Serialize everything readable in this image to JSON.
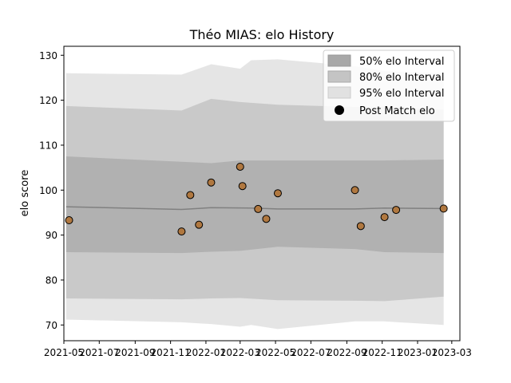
{
  "chart_data": {
    "type": "scatter",
    "title": "Théo MIAS: elo History",
    "xlabel": "",
    "ylabel": "elo score",
    "ylim": [
      66.5,
      132
    ],
    "xlim": [
      "2021-05-01",
      "2023-03-15"
    ],
    "y_ticks": [
      70,
      80,
      90,
      100,
      110,
      120,
      130
    ],
    "x_ticks": [
      {
        "date": "2021-05-01",
        "label": "2021-05"
      },
      {
        "date": "2021-07-01",
        "label": "2021-07"
      },
      {
        "date": "2021-09-01",
        "label": "2021-09"
      },
      {
        "date": "2021-11-01",
        "label": "2021-11"
      },
      {
        "date": "2022-01-01",
        "label": "2022-01"
      },
      {
        "date": "2022-03-01",
        "label": "2022-03"
      },
      {
        "date": "2022-05-01",
        "label": "2022-05"
      },
      {
        "date": "2022-07-01",
        "label": "2022-07"
      },
      {
        "date": "2022-09-01",
        "label": "2022-09"
      },
      {
        "date": "2022-11-01",
        "label": "2022-11"
      },
      {
        "date": "2023-01-01",
        "label": "2023-01"
      },
      {
        "date": "2023-03-01",
        "label": "2023-03"
      }
    ],
    "legend": {
      "placement": "top-right",
      "entries": [
        "50% elo Interval",
        "80% elo Interval",
        "95% elo Interval",
        "Post Match elo"
      ]
    },
    "colors": {
      "band50": "#a8a8a8",
      "band80": "#c4c4c4",
      "band95": "#e1e1e1",
      "median_line": "#808080",
      "point_fill": "#b07840",
      "point_edge": "#000000"
    },
    "points": [
      {
        "x": "2021-05-10",
        "y": 93.3
      },
      {
        "x": "2021-11-20",
        "y": 90.8
      },
      {
        "x": "2021-12-05",
        "y": 98.9
      },
      {
        "x": "2021-12-20",
        "y": 92.3
      },
      {
        "x": "2022-01-10",
        "y": 101.7
      },
      {
        "x": "2022-03-01",
        "y": 105.2
      },
      {
        "x": "2022-03-05",
        "y": 100.9
      },
      {
        "x": "2022-04-01",
        "y": 95.8
      },
      {
        "x": "2022-04-15",
        "y": 93.6
      },
      {
        "x": "2022-05-05",
        "y": 99.3
      },
      {
        "x": "2022-09-15",
        "y": 100.0
      },
      {
        "x": "2022-09-25",
        "y": 92.0
      },
      {
        "x": "2022-11-05",
        "y": 94.0
      },
      {
        "x": "2022-11-25",
        "y": 95.6
      },
      {
        "x": "2023-02-15",
        "y": 95.9
      }
    ],
    "median": [
      {
        "x": "2021-05-05",
        "y": 96.3
      },
      {
        "x": "2021-11-20",
        "y": 95.7
      },
      {
        "x": "2022-01-10",
        "y": 96.1
      },
      {
        "x": "2022-03-20",
        "y": 96.0
      },
      {
        "x": "2022-05-05",
        "y": 95.8
      },
      {
        "x": "2022-09-15",
        "y": 95.8
      },
      {
        "x": "2022-11-05",
        "y": 96.0
      },
      {
        "x": "2023-02-15",
        "y": 95.9
      }
    ],
    "bands": {
      "band95": [
        {
          "x": "2021-05-05",
          "lo": 71.2,
          "hi": 126.0
        },
        {
          "x": "2021-11-20",
          "lo": 70.6,
          "hi": 125.7
        },
        {
          "x": "2022-01-10",
          "lo": 70.2,
          "hi": 128.0
        },
        {
          "x": "2022-03-01",
          "lo": 69.6,
          "hi": 127.0
        },
        {
          "x": "2022-03-20",
          "lo": 70.0,
          "hi": 128.9
        },
        {
          "x": "2022-05-05",
          "lo": 69.1,
          "hi": 129.1
        },
        {
          "x": "2022-09-15",
          "lo": 70.8,
          "hi": 127.6
        },
        {
          "x": "2022-11-05",
          "lo": 70.8,
          "hi": 126.5
        },
        {
          "x": "2023-02-15",
          "lo": 70.0,
          "hi": 126.0
        }
      ],
      "band80": [
        {
          "x": "2021-05-05",
          "lo": 75.9,
          "hi": 118.7
        },
        {
          "x": "2021-11-20",
          "lo": 75.7,
          "hi": 117.7
        },
        {
          "x": "2022-01-10",
          "lo": 75.9,
          "hi": 120.3
        },
        {
          "x": "2022-03-01",
          "lo": 76.0,
          "hi": 119.6
        },
        {
          "x": "2022-05-05",
          "lo": 75.5,
          "hi": 119.0
        },
        {
          "x": "2022-09-15",
          "lo": 75.4,
          "hi": 118.5
        },
        {
          "x": "2022-11-05",
          "lo": 75.3,
          "hi": 118.6
        },
        {
          "x": "2023-02-15",
          "lo": 76.3,
          "hi": 117.9
        }
      ],
      "band50": [
        {
          "x": "2021-05-05",
          "lo": 86.2,
          "hi": 107.5
        },
        {
          "x": "2021-11-20",
          "lo": 86.0,
          "hi": 106.3
        },
        {
          "x": "2022-01-10",
          "lo": 86.3,
          "hi": 106.0
        },
        {
          "x": "2022-03-01",
          "lo": 86.5,
          "hi": 106.6
        },
        {
          "x": "2022-05-05",
          "lo": 87.4,
          "hi": 106.6
        },
        {
          "x": "2022-09-15",
          "lo": 86.9,
          "hi": 106.6
        },
        {
          "x": "2022-11-05",
          "lo": 86.2,
          "hi": 106.6
        },
        {
          "x": "2023-02-15",
          "lo": 86.0,
          "hi": 106.8
        }
      ]
    }
  }
}
